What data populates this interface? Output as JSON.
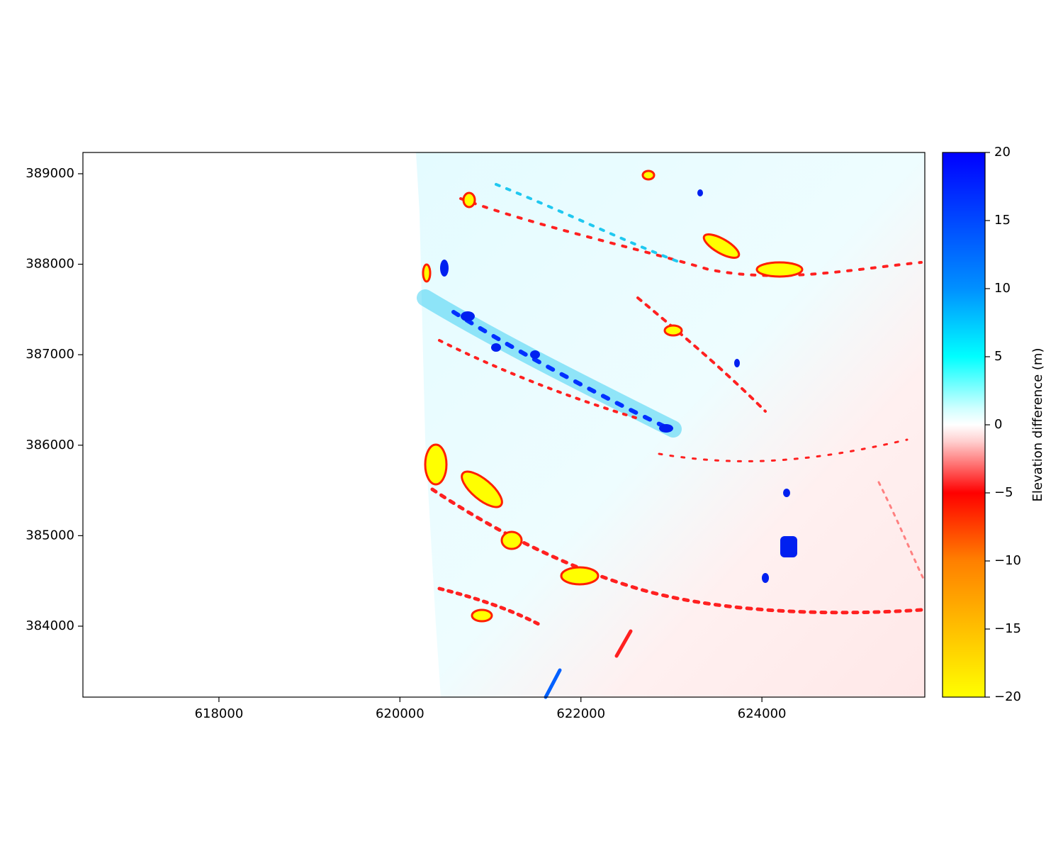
{
  "chart_data": {
    "type": "raster",
    "xlim": [
      616497,
      625800
    ],
    "ylim": [
      383216,
      389235
    ],
    "xticks": [
      618000,
      620000,
      622000,
      624000
    ],
    "yticks": [
      384000,
      385000,
      386000,
      387000,
      388000,
      389000
    ],
    "colorbar": {
      "label": "Elevation difference (m)",
      "lim": [
        -20,
        20
      ],
      "ticks": [
        {
          "value": -20,
          "label": "−20"
        },
        {
          "value": -15,
          "label": "−15"
        },
        {
          "value": -10,
          "label": "−10"
        },
        {
          "value": -5,
          "label": "−5"
        },
        0,
        5,
        10,
        15,
        20
      ]
    }
  }
}
